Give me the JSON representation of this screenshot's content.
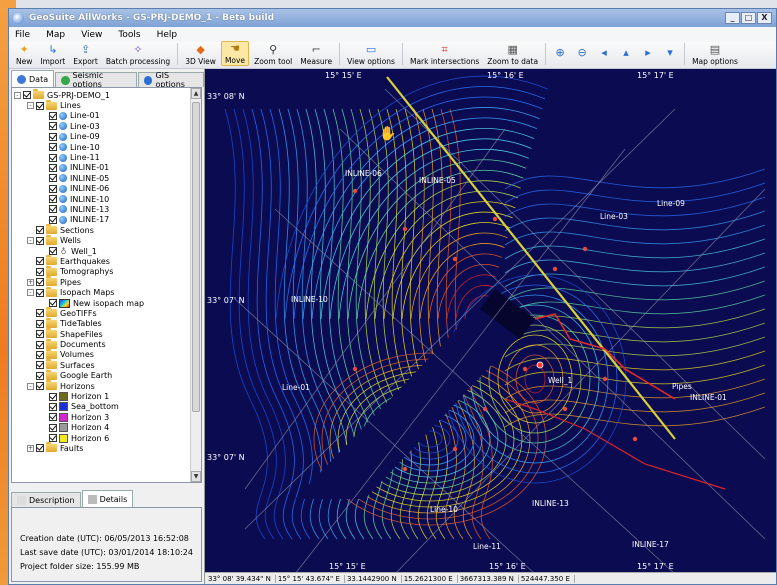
{
  "window": {
    "title": "GeoSuite AllWorks - GS-PRJ-DEMO_1 - Beta build",
    "controls": [
      "_",
      "□",
      "X"
    ]
  },
  "menu": [
    "File",
    "Map",
    "View",
    "Tools",
    "Help"
  ],
  "toolbar": {
    "new": "New",
    "import": "Import",
    "export": "Export",
    "batch": "Batch processing",
    "view3d": "3D View",
    "move": "Move",
    "zoom_tool": "Zoom tool",
    "measure": "Measure",
    "view_options": "View options",
    "mark_intersections": "Mark intersections",
    "zoom_to_data": "Zoom to data",
    "map_options": "Map options"
  },
  "left_tabs": [
    "Data",
    "Seismic options",
    "GIS options"
  ],
  "tree": [
    {
      "label": "GS-PRJ-DEMO_1",
      "depth": 0,
      "icon": "folder",
      "exp": "-"
    },
    {
      "label": "Lines",
      "depth": 1,
      "icon": "folder",
      "exp": "-"
    },
    {
      "label": "Line-01",
      "depth": 2,
      "icon": "globe"
    },
    {
      "label": "Line-03",
      "depth": 2,
      "icon": "globe"
    },
    {
      "label": "Line-09",
      "depth": 2,
      "icon": "globe"
    },
    {
      "label": "Line-10",
      "depth": 2,
      "icon": "globe"
    },
    {
      "label": "Line-11",
      "depth": 2,
      "icon": "globe"
    },
    {
      "label": "INLINE-01",
      "depth": 2,
      "icon": "globe"
    },
    {
      "label": "INLINE-05",
      "depth": 2,
      "icon": "globe"
    },
    {
      "label": "INLINE-06",
      "depth": 2,
      "icon": "globe"
    },
    {
      "label": "INLINE-10",
      "depth": 2,
      "icon": "globe"
    },
    {
      "label": "INLINE-13",
      "depth": 2,
      "icon": "globe"
    },
    {
      "label": "INLINE-17",
      "depth": 2,
      "icon": "globe"
    },
    {
      "label": "Sections",
      "depth": 1,
      "icon": "folder"
    },
    {
      "label": "Wells",
      "depth": 1,
      "icon": "folder",
      "exp": "-"
    },
    {
      "label": "Well_1",
      "depth": 2,
      "icon": "well"
    },
    {
      "label": "Earthquakes",
      "depth": 1,
      "icon": "folder"
    },
    {
      "label": "Tomographys",
      "depth": 1,
      "icon": "folder"
    },
    {
      "label": "Pipes",
      "depth": 1,
      "icon": "folder",
      "exp": "+"
    },
    {
      "label": "Isopach Maps",
      "depth": 1,
      "icon": "folder",
      "exp": "-"
    },
    {
      "label": "New isopach map",
      "depth": 2,
      "icon": "isomap"
    },
    {
      "label": "GeoTIFFs",
      "depth": 1,
      "icon": "folder"
    },
    {
      "label": "TideTables",
      "depth": 1,
      "icon": "folder"
    },
    {
      "label": "ShapeFiles",
      "depth": 1,
      "icon": "folder"
    },
    {
      "label": "Documents",
      "depth": 1,
      "icon": "folder"
    },
    {
      "label": "Volumes",
      "depth": 1,
      "icon": "folder"
    },
    {
      "label": "Surfaces",
      "depth": 1,
      "icon": "folder"
    },
    {
      "label": "Google Earth",
      "depth": 1,
      "icon": "folder"
    },
    {
      "label": "Horizons",
      "depth": 1,
      "icon": "folder",
      "exp": "-"
    },
    {
      "label": "Horizon 1",
      "depth": 2,
      "icon": "swatch",
      "color": "#6b6b1a"
    },
    {
      "label": "Sea_bottom",
      "depth": 2,
      "icon": "swatch",
      "color": "#1b2fd8"
    },
    {
      "label": "Horizon 3",
      "depth": 2,
      "icon": "swatch",
      "color": "#d22ac8"
    },
    {
      "label": "Horizon 4",
      "depth": 2,
      "icon": "swatch",
      "color": "#9a9a9a"
    },
    {
      "label": "Horizon 6",
      "depth": 2,
      "icon": "swatch",
      "color": "#f2ea1e"
    },
    {
      "label": "Faults",
      "depth": 1,
      "icon": "folder",
      "exp": "+"
    }
  ],
  "bottom_tabs": [
    "Description",
    "Details"
  ],
  "details": {
    "creation": "Creation date (UTC): 06/05/2013 16:52:08",
    "last_save": "Last save date (UTC): 03/01/2014 18:10:24",
    "folder_size": "Project folder size: 155.99 MB"
  },
  "map": {
    "top_coords": [
      "15° 15' E",
      "15° 16' E",
      "15° 17' E"
    ],
    "bottom_coords": [
      "15° 15' E",
      "15° 16' E",
      "15° 17' E"
    ],
    "lat_labels": [
      "33° 08' N",
      "33° 07' N",
      "33° 07' N"
    ],
    "line_labels": [
      "INLINE-06",
      "INLINE-05",
      "Line-03",
      "Line-09",
      "INLINE-10",
      "Line-01",
      "Well_1",
      "Pipes",
      "INLINE-01",
      "Line-10",
      "INLINE-13",
      "Line-11",
      "INLINE-17"
    ]
  },
  "status": [
    "33° 08' 39.434\" N",
    "15° 15' 43.674\" E",
    "33.1442900 N",
    "15.2621300 E",
    "3667313.389 N",
    "524447.350 E"
  ]
}
